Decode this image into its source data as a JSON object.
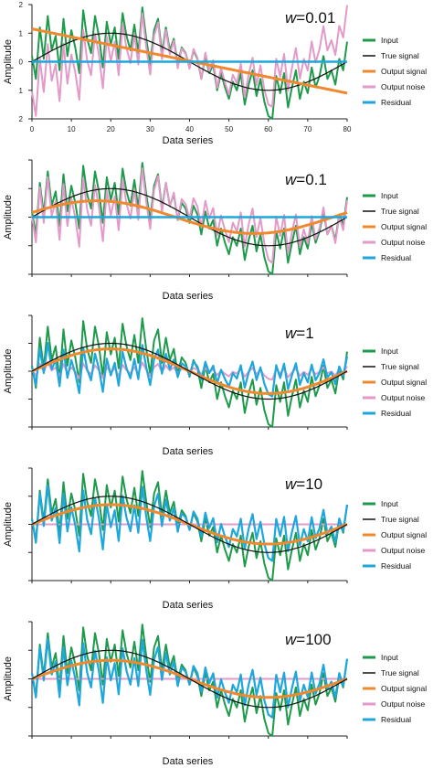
{
  "panels_common": {
    "ylabel": "Amplitude",
    "xlabel": "Data series",
    "legend_labels": [
      "Input",
      "True signal",
      "Output signal",
      "Output noise",
      "Residual"
    ],
    "legend_labels_last3": [
      "Input",
      "True signal",
      "Output signal",
      "Output noise",
      "Residual"
    ]
  },
  "colors": {
    "input": "#1e9a4b",
    "true_signal": "#111111",
    "output_signal": "#f0882e",
    "output_noise": "#e39ac8",
    "residual": "#1ea7dc"
  },
  "chart_data": [
    {
      "type": "line",
      "title": "w=0.01",
      "title_var": "w",
      "title_val": "=0.01",
      "xlabel": "Data series",
      "ylabel": "Amplitude",
      "xlim": [
        0,
        80
      ],
      "ylim": [
        -2,
        2
      ],
      "xticks": [
        "0",
        "10",
        "20",
        "30",
        "40",
        "50",
        "60",
        "70",
        "80"
      ],
      "yticks": [
        "2",
        "1",
        "0",
        "1",
        "2"
      ],
      "legend": [
        "Input",
        "True signal",
        "Output signal",
        "Output noise",
        "Residual"
      ],
      "weight": 0.01
    },
    {
      "type": "line",
      "title": "w=0.1",
      "title_var": "w",
      "title_val": "=0.1",
      "xlabel": "Data series",
      "ylabel": "Amplitude",
      "xlim": [
        0,
        80
      ],
      "ylim": [
        -2,
        2
      ],
      "legend": [
        "Input",
        "True signal",
        "Output signal",
        "Output noise",
        "Residual"
      ],
      "weight": 0.1
    },
    {
      "type": "line",
      "title": "w=1",
      "title_var": "w",
      "title_val": "=1",
      "xlabel": "Data series",
      "ylabel": "Amplitude",
      "xlim": [
        0,
        80
      ],
      "ylim": [
        -2,
        2
      ],
      "legend": [
        "Input",
        "True signal",
        "Output signal",
        "Output noise",
        "Residual"
      ],
      "weight": 1
    },
    {
      "type": "line",
      "title": "w=10",
      "title_var": "w",
      "title_val": "=10",
      "xlabel": "Data series",
      "ylabel": "Amplitude",
      "xlim": [
        0,
        80
      ],
      "ylim": [
        -2,
        2
      ],
      "legend": [
        "Input",
        "True signal",
        "Output signal",
        "Output noise",
        "Residual"
      ],
      "weight": 10
    },
    {
      "type": "line",
      "title": "w=100",
      "title_var": "w",
      "title_val": "=100",
      "xlabel": "Data series",
      "ylabel": "Amplitude",
      "xlim": [
        0,
        80
      ],
      "ylim": [
        -2,
        2
      ],
      "legend": [
        "Input",
        "True signal",
        "Output signal",
        "Output noise",
        "Residual"
      ],
      "weight": 100
    }
  ],
  "input_series": [
    0.2,
    -0.6,
    1.2,
    0.1,
    1.6,
    0.4,
    0.9,
    -0.3,
    1.5,
    0.2,
    1.1,
    0.5,
    -0.4,
    1.8,
    0.8,
    0.3,
    1.6,
    0.9,
    -0.2,
    1.4,
    0.6,
    1.2,
    0.1,
    1.7,
    0.9,
    0.4,
    1.3,
    0.3,
    1.9,
    0.8,
    -0.1,
    1.1,
    1.5,
    0.3,
    1.2,
    0.4,
    0.8,
    -0.1,
    0.5,
    0.3,
    -0.2,
    0.4,
    0.1,
    -0.6,
    0.2,
    -0.4,
    -0.1,
    -1.0,
    -0.4,
    -0.9,
    -1.3,
    -0.7,
    -1.0,
    -0.4,
    -1.5,
    -0.8,
    -0.3,
    -1.2,
    -0.6,
    -1.4,
    -1.9,
    -2.0,
    -0.5,
    -1.1,
    -0.4,
    -1.6,
    -0.9,
    -0.3,
    -1.3,
    -0.7,
    -1.1,
    -0.2,
    -0.9,
    -0.5,
    0.2,
    -0.6,
    -0.3,
    -0.8,
    0.1,
    -0.3,
    0.7
  ]
}
